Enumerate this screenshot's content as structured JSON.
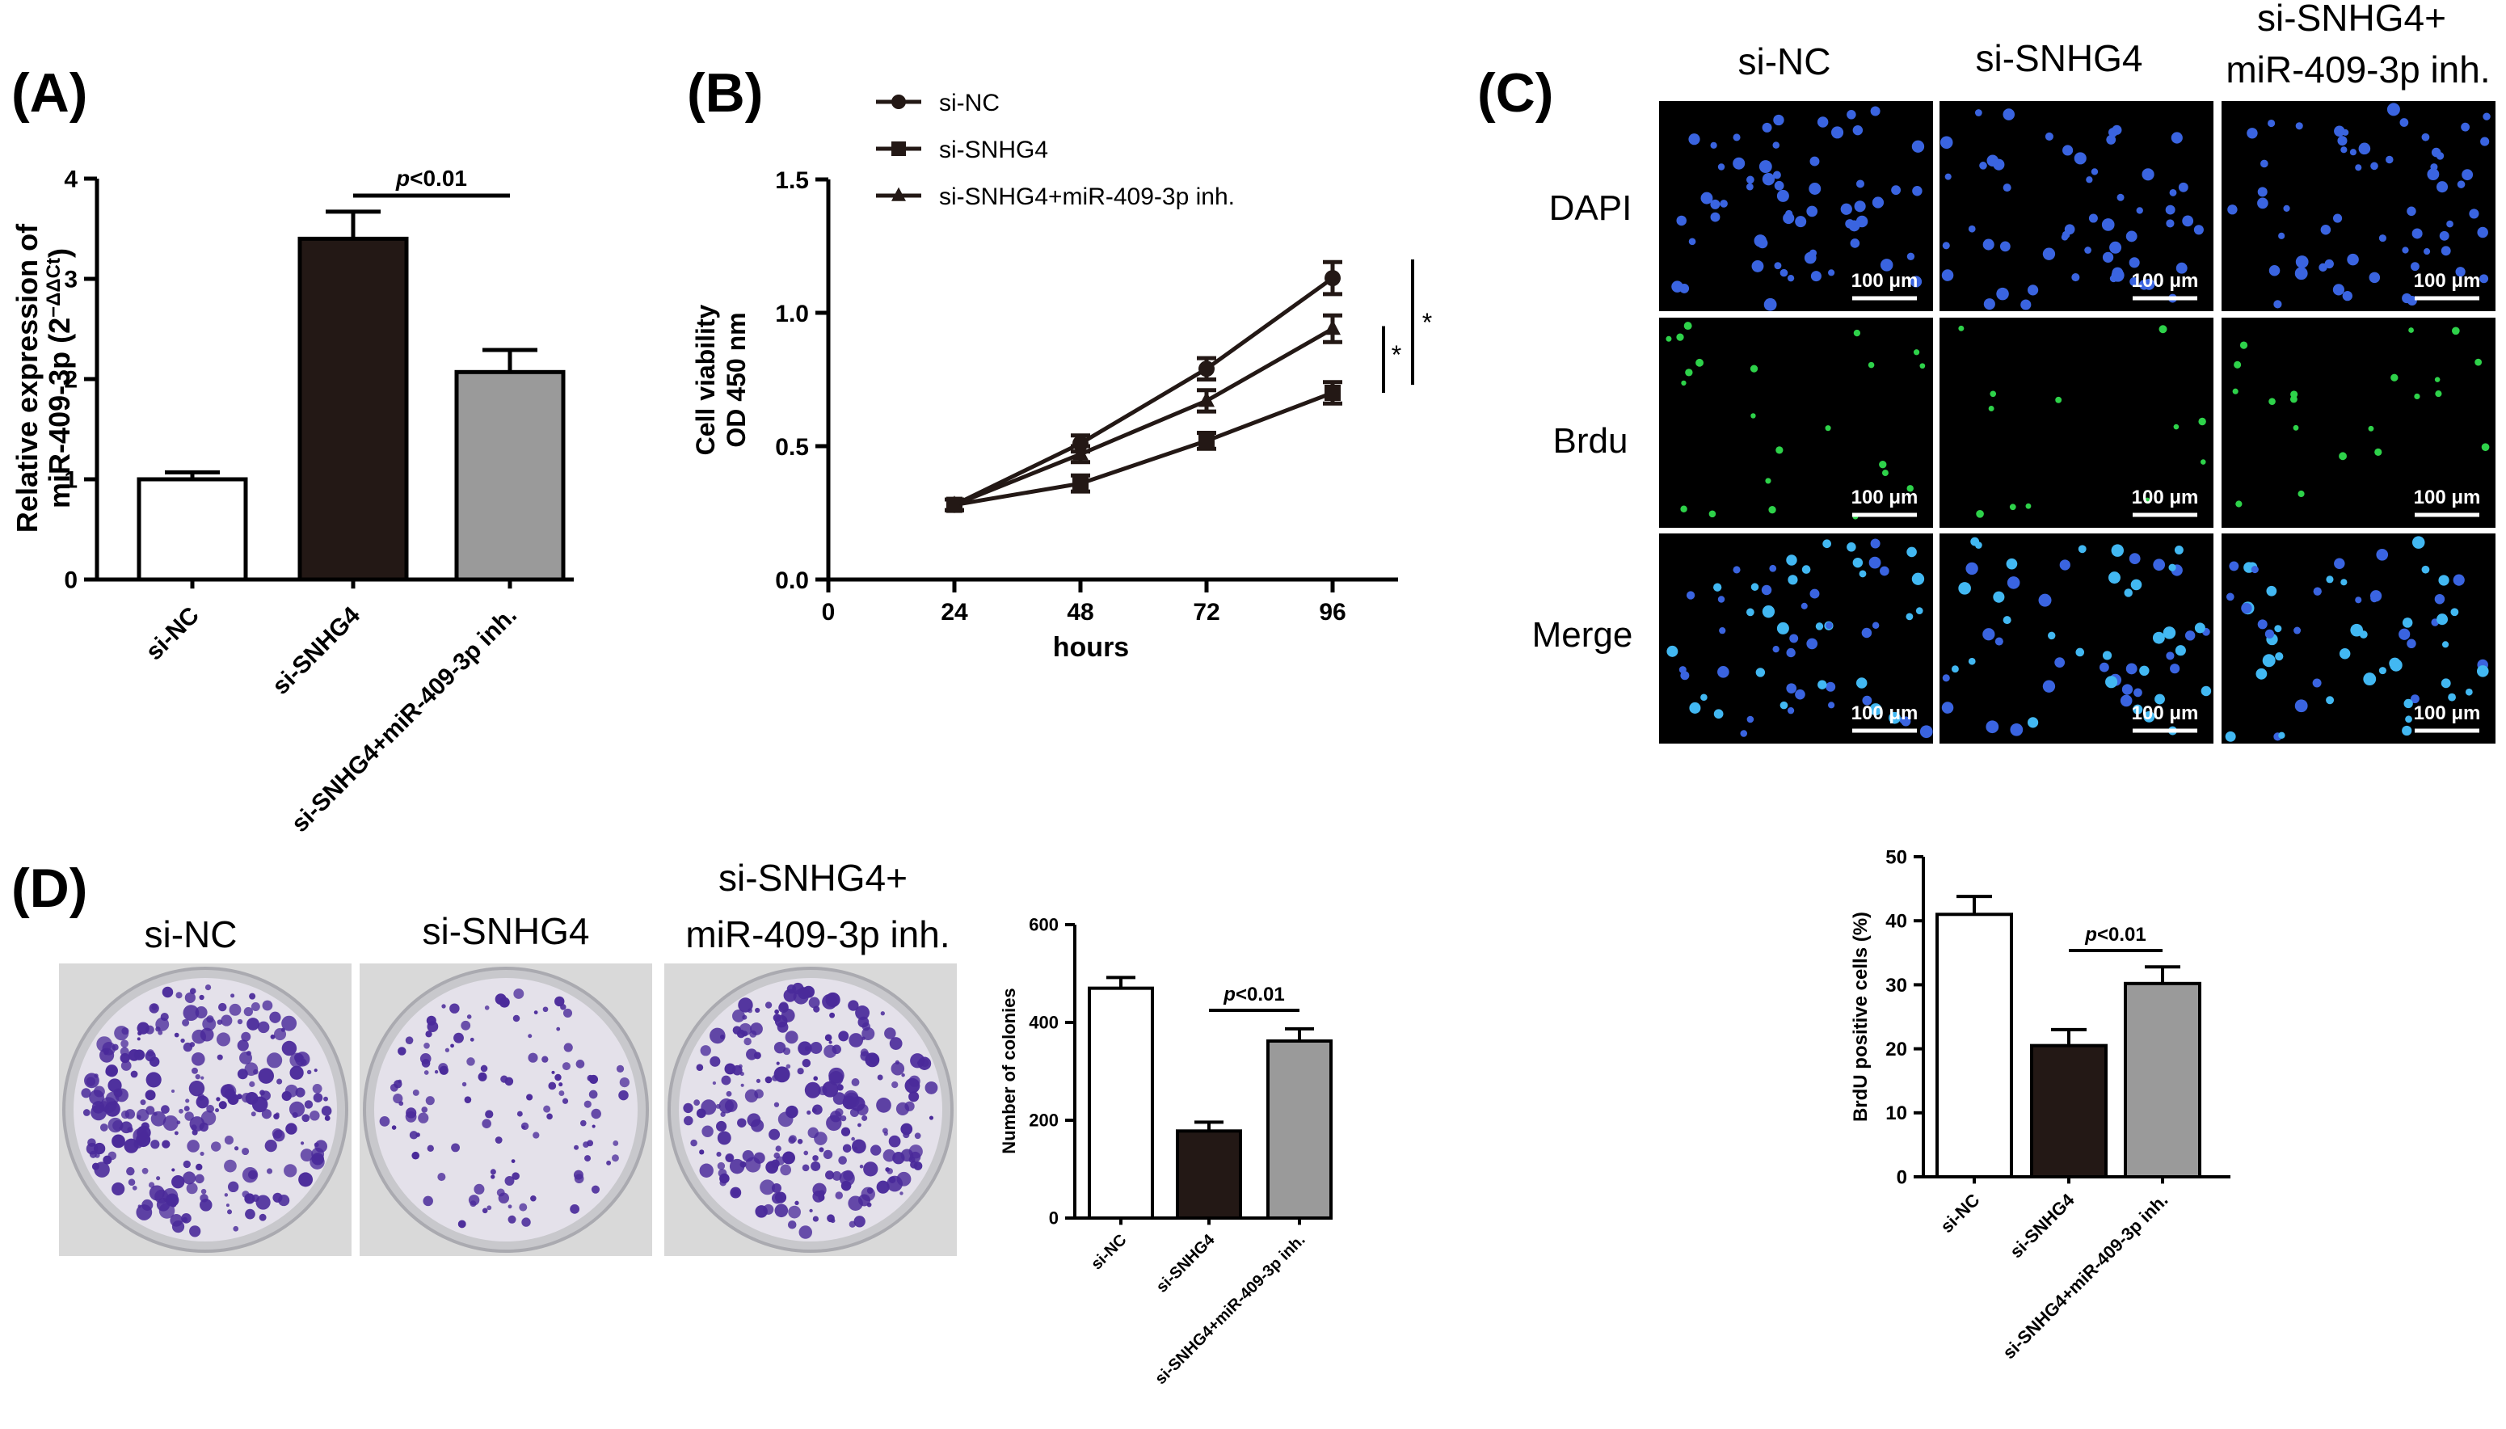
{
  "panels": {
    "A": "(A)",
    "B": "(B)",
    "C": "(C)",
    "D": "(D)"
  },
  "colors": {
    "si_nc": "#ffffff",
    "si_snhg4": "#231815",
    "rescue": "#9a9a9a",
    "dapi": "#3a64e0",
    "brdu": "#2ed24a",
    "merge": "#42b8f2",
    "crystal_violet": "#4a2a9a"
  },
  "panel_c": {
    "columns": [
      "si-NC",
      "si-SNHG4",
      "si-SNHG4+",
      "miR-409-3p inh."
    ],
    "rows": [
      "DAPI",
      "Brdu",
      "Merge"
    ],
    "scale_bar": "100 μm"
  },
  "panel_d": {
    "columns": [
      "si-NC",
      "si-SNHG4",
      "si-SNHG4+",
      "miR-409-3p inh."
    ]
  },
  "chart_data": [
    {
      "id": "A",
      "type": "bar",
      "categories": [
        "si-NC",
        "si-SNHG4",
        "si-SNHG4+miR-409-3p inh."
      ],
      "values": [
        1.0,
        3.4,
        2.07
      ],
      "errors": [
        0.07,
        0.27,
        0.22
      ],
      "ylabel_line1": "Relative expression of",
      "ylabel_line2": "miR-409-3p (2",
      "ylabel_sup": "−ΔΔCt",
      "ylabel_end": ")",
      "ylim": [
        0,
        4
      ],
      "yticks": [
        "0",
        "1",
        "2",
        "3",
        "4"
      ],
      "annotation": {
        "p": "p",
        "text": "<0.01",
        "between": [
          1,
          2
        ]
      }
    },
    {
      "id": "B",
      "type": "line",
      "x": [
        24,
        48,
        72,
        96
      ],
      "xticks": [
        "0",
        "24",
        "48",
        "72",
        "96"
      ],
      "series": [
        {
          "name": "si-NC",
          "marker": "circle",
          "values": [
            0.28,
            0.51,
            0.79,
            1.13
          ],
          "errors": [
            0.02,
            0.03,
            0.04,
            0.06
          ]
        },
        {
          "name": "si-SNHG4",
          "marker": "square",
          "values": [
            0.28,
            0.36,
            0.52,
            0.7
          ],
          "errors": [
            0.02,
            0.03,
            0.03,
            0.04
          ]
        },
        {
          "name": "si-SNHG4+miR-409-3p inh.",
          "marker": "triangle",
          "values": [
            0.28,
            0.47,
            0.67,
            0.94
          ],
          "errors": [
            0.02,
            0.03,
            0.04,
            0.05
          ]
        }
      ],
      "xlabel": "hours",
      "ylabel_line1": "Cell viability",
      "ylabel_line2": "OD 450 nm",
      "ylim": [
        0,
        1.5
      ],
      "yticks": [
        "0.0",
        "0.5",
        "1.0",
        "1.5"
      ],
      "sig_marks": [
        "*",
        "*"
      ]
    },
    {
      "id": "C",
      "type": "bar",
      "categories": [
        "si-NC",
        "si-SNHG4",
        "si-SNHG4+miR-409-3p inh."
      ],
      "values": [
        41,
        20.5,
        30.2
      ],
      "errors": [
        2.8,
        2.5,
        2.6
      ],
      "ylabel": "BrdU positive cells (%)",
      "ylim": [
        0,
        50
      ],
      "yticks": [
        "0",
        "10",
        "20",
        "30",
        "40",
        "50"
      ],
      "annotation": {
        "p": "p",
        "text": "<0.01",
        "between": [
          1,
          2
        ]
      }
    },
    {
      "id": "D",
      "type": "bar",
      "categories": [
        "si-NC",
        "si-SNHG4",
        "si-SNHG4+miR-409-3p inh."
      ],
      "values": [
        470,
        178,
        362
      ],
      "errors": [
        22,
        18,
        25
      ],
      "ylabel": "Number of colonies",
      "ylim": [
        0,
        600
      ],
      "yticks": [
        "0",
        "200",
        "400",
        "600"
      ],
      "annotation": {
        "p": "p",
        "text": "<0.01",
        "between": [
          1,
          2
        ]
      }
    }
  ]
}
